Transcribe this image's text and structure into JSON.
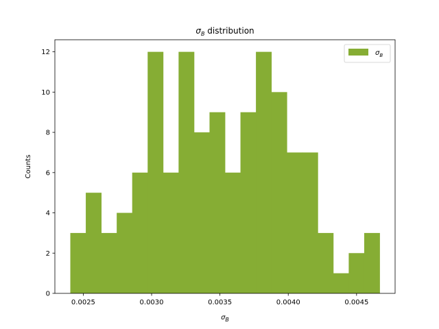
{
  "chart_data": {
    "type": "bar",
    "title": "σB distribution",
    "title_base": "σ",
    "title_sub": "B",
    "title_rest": " distribution",
    "xlabel_base": "σ",
    "xlabel_sub": "B",
    "ylabel": "Counts",
    "bin_edges": [
      0.002405,
      0.0025182,
      0.0026314,
      0.0027446,
      0.0028578,
      0.002971,
      0.0030842,
      0.0031974,
      0.0033106,
      0.0034238,
      0.003537,
      0.0036502,
      0.0037634,
      0.0038766,
      0.0039898,
      0.004103,
      0.0042162,
      0.0043294,
      0.0044426,
      0.0045558,
      0.004669
    ],
    "counts": [
      3,
      5,
      3,
      4,
      6,
      12,
      6,
      12,
      8,
      9,
      6,
      9,
      12,
      10,
      7,
      7,
      3,
      1,
      2,
      3
    ],
    "xlim": [
      0.002292,
      0.004782
    ],
    "ylim": [
      0,
      12.6
    ],
    "xticks": [
      0.0025,
      0.003,
      0.0035,
      0.004,
      0.0045
    ],
    "xtick_labels": [
      "0.0025",
      "0.0030",
      "0.0035",
      "0.0040",
      "0.0045"
    ],
    "yticks": [
      0,
      2,
      4,
      6,
      8,
      10,
      12
    ],
    "ytick_labels": [
      "0",
      "2",
      "4",
      "6",
      "8",
      "10",
      "12"
    ],
    "grid": false,
    "color": "#86ad34",
    "legend": {
      "placement": "top-right",
      "entries": [
        {
          "label_base": "σ",
          "label_sub": "B",
          "color": "#86ad34"
        }
      ]
    }
  }
}
